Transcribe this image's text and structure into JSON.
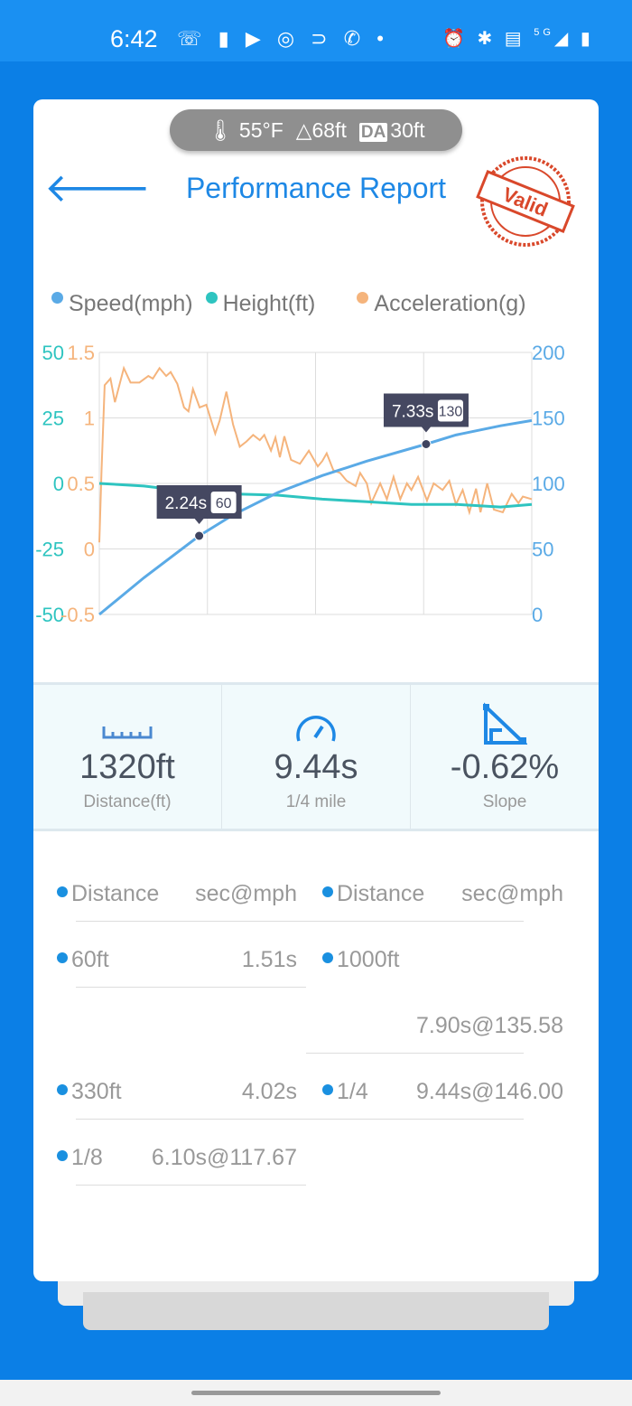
{
  "status_bar": {
    "time": "6:42",
    "notification_icons": [
      "missed-call",
      "cup",
      "youtube",
      "instagram",
      "doordash",
      "phone",
      "dot"
    ],
    "system_icons": [
      "alarm",
      "bluetooth",
      "volte",
      "5g-signal",
      "battery"
    ],
    "network": "5G"
  },
  "conditions": {
    "temperature": "55°F",
    "altitude": "68ft",
    "da_label": "DA",
    "density_altitude": "30ft"
  },
  "header": {
    "title": "Performance Report",
    "stamp": "Valid"
  },
  "colors": {
    "speed": "#5aaae6",
    "height": "#2ec4c0",
    "acceleration": "#f5b47c",
    "accent": "#1e88e5",
    "stamp": "#d9482b"
  },
  "chart_data": {
    "type": "line",
    "legend": [
      "Speed(mph)",
      "Height(ft)",
      "Acceleration(g)"
    ],
    "legend_position": "top",
    "grid": true,
    "x_range": [
      0,
      9.7
    ],
    "axes": {
      "height": {
        "side": "left",
        "range": [
          -50,
          50
        ],
        "ticks": [
          "50",
          "25",
          "0",
          "-25",
          "-50"
        ]
      },
      "acceleration": {
        "side": "left",
        "range": [
          -0.5,
          1.5
        ],
        "ticks": [
          "1.5",
          "1",
          "0.5",
          "0",
          "-0.5"
        ]
      },
      "speed": {
        "side": "right",
        "range": [
          0,
          200
        ],
        "ticks": [
          "200",
          "150",
          "100",
          "50",
          "0"
        ]
      }
    },
    "series": [
      {
        "name": "Speed(mph)",
        "axis": "speed",
        "points": [
          [
            0,
            0
          ],
          [
            1,
            28
          ],
          [
            2.24,
            60
          ],
          [
            3,
            76
          ],
          [
            4,
            93
          ],
          [
            5,
            106
          ],
          [
            6,
            117
          ],
          [
            7.33,
            130
          ],
          [
            8,
            137
          ],
          [
            9,
            144
          ],
          [
            9.7,
            148
          ]
        ]
      },
      {
        "name": "Height(ft)",
        "axis": "height",
        "points": [
          [
            0,
            0
          ],
          [
            1,
            -1
          ],
          [
            2,
            -3
          ],
          [
            3,
            -4
          ],
          [
            4,
            -4.5
          ],
          [
            5,
            -6
          ],
          [
            6,
            -7
          ],
          [
            7,
            -8
          ],
          [
            8,
            -8
          ],
          [
            9,
            -9
          ],
          [
            9.7,
            -8
          ]
        ]
      },
      {
        "name": "Acceleration(g)",
        "axis": "acceleration",
        "points": [
          [
            0,
            0.05
          ],
          [
            0.05,
            0.6
          ],
          [
            0.12,
            1.25
          ],
          [
            0.25,
            1.3
          ],
          [
            0.35,
            1.12
          ],
          [
            0.55,
            1.38
          ],
          [
            0.7,
            1.27
          ],
          [
            0.9,
            1.27
          ],
          [
            1.1,
            1.32
          ],
          [
            1.2,
            1.3
          ],
          [
            1.35,
            1.38
          ],
          [
            1.5,
            1.32
          ],
          [
            1.6,
            1.35
          ],
          [
            1.75,
            1.26
          ],
          [
            1.9,
            1.08
          ],
          [
            2.0,
            1.05
          ],
          [
            2.1,
            1.22
          ],
          [
            2.25,
            1.08
          ],
          [
            2.4,
            1.1
          ],
          [
            2.6,
            0.88
          ],
          [
            2.7,
            0.98
          ],
          [
            2.85,
            1.2
          ],
          [
            3.0,
            0.95
          ],
          [
            3.15,
            0.78
          ],
          [
            3.3,
            0.82
          ],
          [
            3.45,
            0.87
          ],
          [
            3.6,
            0.83
          ],
          [
            3.7,
            0.87
          ],
          [
            3.85,
            0.75
          ],
          [
            3.95,
            0.85
          ],
          [
            4.05,
            0.7
          ],
          [
            4.15,
            0.86
          ],
          [
            4.3,
            0.68
          ],
          [
            4.5,
            0.65
          ],
          [
            4.7,
            0.75
          ],
          [
            4.9,
            0.63
          ],
          [
            5.0,
            0.67
          ],
          [
            5.1,
            0.73
          ],
          [
            5.25,
            0.6
          ],
          [
            5.4,
            0.58
          ],
          [
            5.55,
            0.52
          ],
          [
            5.75,
            0.48
          ],
          [
            5.85,
            0.58
          ],
          [
            6.0,
            0.5
          ],
          [
            6.1,
            0.35
          ],
          [
            6.3,
            0.5
          ],
          [
            6.45,
            0.38
          ],
          [
            6.6,
            0.55
          ],
          [
            6.75,
            0.38
          ],
          [
            6.9,
            0.5
          ],
          [
            7.0,
            0.45
          ],
          [
            7.15,
            0.55
          ],
          [
            7.35,
            0.37
          ],
          [
            7.5,
            0.5
          ],
          [
            7.7,
            0.45
          ],
          [
            7.85,
            0.52
          ],
          [
            8.0,
            0.34
          ],
          [
            8.15,
            0.45
          ],
          [
            8.3,
            0.28
          ],
          [
            8.45,
            0.46
          ],
          [
            8.55,
            0.28
          ],
          [
            8.7,
            0.5
          ],
          [
            8.85,
            0.3
          ],
          [
            9.05,
            0.28
          ],
          [
            9.25,
            0.42
          ],
          [
            9.4,
            0.35
          ],
          [
            9.5,
            0.4
          ],
          [
            9.7,
            0.38
          ]
        ]
      }
    ],
    "markers": [
      {
        "time": "2.24s",
        "speed": "60",
        "x": 2.24,
        "y": 60
      },
      {
        "time": "7.33s",
        "speed": "130",
        "x": 7.33,
        "y": 130
      }
    ]
  },
  "stats": [
    {
      "icon": "ruler-icon",
      "value": "1320ft",
      "label": "Distance(ft)"
    },
    {
      "icon": "speedometer-icon",
      "value": "9.44s",
      "label": "1/4 mile"
    },
    {
      "icon": "slope-icon",
      "value": "-0.62%",
      "label": "Slope"
    }
  ],
  "splits": {
    "left": [
      {
        "key": "Distance",
        "value": "sec@mph"
      },
      {
        "key": "60ft",
        "value": "1.51s"
      },
      {
        "key": "330ft",
        "value": "4.02s"
      },
      {
        "key": "1/8",
        "value": "6.10s@117.67"
      }
    ],
    "right": [
      {
        "key": "Distance",
        "value": "sec@mph"
      },
      {
        "key": "1000ft",
        "value": "7.90s@135.58"
      },
      {
        "key": "1/4",
        "value": "9.44s@146.00"
      }
    ]
  }
}
